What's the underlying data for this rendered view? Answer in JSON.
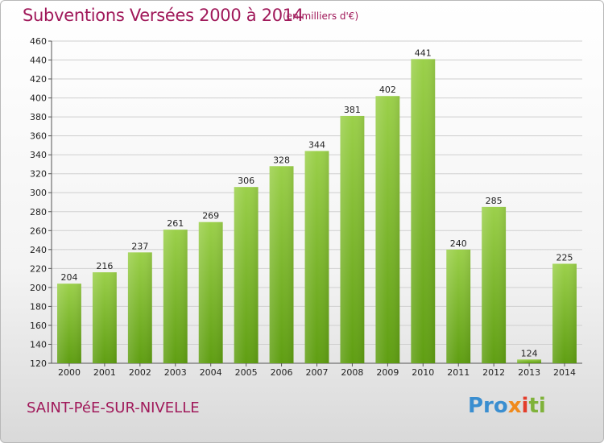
{
  "title": "Subventions Versées 2000 à 2014",
  "subtitle": "(en milliers d'€)",
  "commune": "SAINT-PéE-SUR-NIVELLE",
  "logo": {
    "p1": "Pro",
    "p2": "x",
    "p3": "i",
    "p4": "ti"
  },
  "colors": {
    "title": "#a0195a",
    "bar_top": "#9bd04a",
    "bar_bottom": "#5f9e12",
    "grid": "#d0d0d0"
  },
  "chart_data": {
    "type": "bar",
    "categories": [
      "2000",
      "2001",
      "2002",
      "2003",
      "2004",
      "2005",
      "2006",
      "2007",
      "2008",
      "2009",
      "2010",
      "2011",
      "2012",
      "2013",
      "2014"
    ],
    "values": [
      204,
      216,
      237,
      261,
      269,
      306,
      328,
      344,
      381,
      402,
      441,
      240,
      285,
      124,
      225
    ],
    "ylim": [
      120,
      460
    ],
    "yticks": [
      120,
      140,
      160,
      180,
      200,
      220,
      240,
      260,
      280,
      300,
      320,
      340,
      360,
      380,
      400,
      420,
      440,
      460
    ],
    "grid": true,
    "xlabel": "",
    "ylabel": ""
  }
}
